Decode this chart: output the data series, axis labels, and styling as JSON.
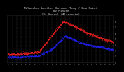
{
  "title": "Milwaukee Weather Outdoor Temp / Dew Point\nby Minute\n(24 Hours) (Alternate)",
  "title_fontsize": 3.0,
  "title_color": "#cccccc",
  "background_color": "#000000",
  "plot_bg_color": "#000000",
  "temp_color": "#ff2222",
  "dew_color": "#2222ff",
  "grid_color": "#555555",
  "ylim": [
    10,
    90
  ],
  "xlim": [
    0,
    1440
  ],
  "yticks": [
    10,
    20,
    30,
    40,
    50,
    60,
    70,
    80
  ],
  "ytick_labels": [
    "1",
    "2",
    "3",
    "4",
    "5",
    "6",
    "7",
    "8"
  ],
  "xtick_interval": 60,
  "dot_size": 0.15,
  "title_family": "monospace"
}
